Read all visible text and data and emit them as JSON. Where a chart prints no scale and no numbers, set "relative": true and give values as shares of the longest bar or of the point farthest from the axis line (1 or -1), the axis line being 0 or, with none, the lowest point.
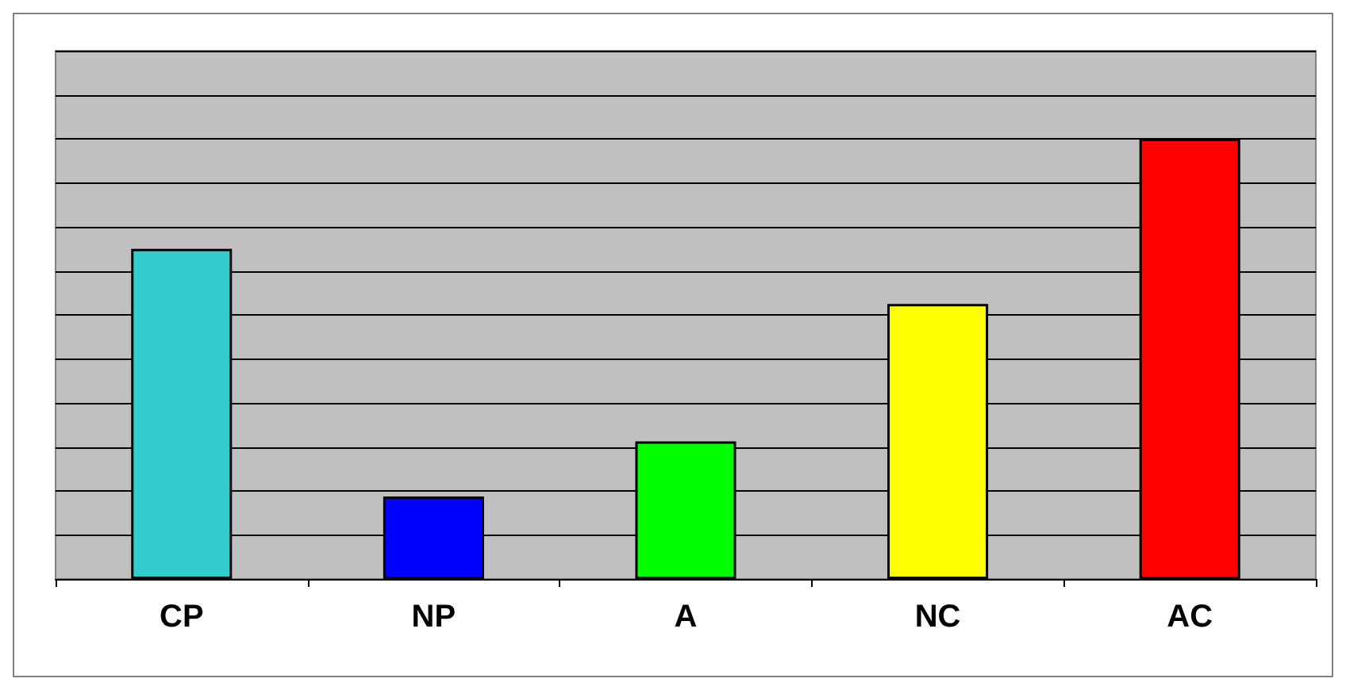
{
  "chart_data": {
    "type": "bar",
    "relative": true,
    "categories": [
      "CP",
      "NP",
      "A",
      "NC",
      "AC"
    ],
    "values": [
      0.75,
      0.1875,
      0.3125,
      0.625,
      1
    ],
    "colors": [
      "#33cccc",
      "#0000ff",
      "#00ff00",
      "#ffff00",
      "#ff0000"
    ],
    "grid": "y"
  }
}
